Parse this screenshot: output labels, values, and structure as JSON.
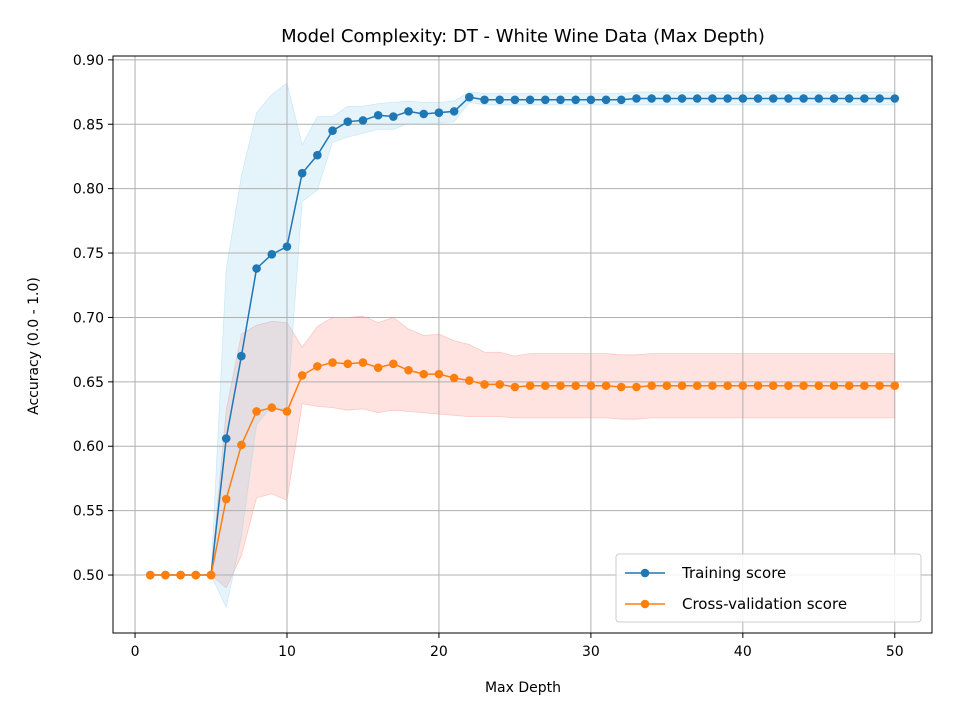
{
  "chart_data": {
    "type": "line",
    "title": "Model Complexity: DT - White Wine Data (Max Depth)",
    "xlabel": "Max Depth",
    "ylabel": "Accuracy (0.0 - 1.0)",
    "xlim": [
      -1.45,
      52.45
    ],
    "ylim": [
      0.455,
      0.903
    ],
    "xticks": [
      0,
      10,
      20,
      30,
      40,
      50
    ],
    "yticks": [
      0.5,
      0.55,
      0.6,
      0.65,
      0.7,
      0.75,
      0.8,
      0.85,
      0.9
    ],
    "xtick_labels": [
      "0",
      "10",
      "20",
      "30",
      "40",
      "50"
    ],
    "ytick_labels": [
      "0.50",
      "0.55",
      "0.60",
      "0.65",
      "0.70",
      "0.75",
      "0.80",
      "0.85",
      "0.90"
    ],
    "grid": true,
    "legend_position": "bottom-right",
    "x": [
      1,
      2,
      3,
      4,
      5,
      6,
      7,
      8,
      9,
      10,
      11,
      12,
      13,
      14,
      15,
      16,
      17,
      18,
      19,
      20,
      21,
      22,
      23,
      24,
      25,
      26,
      27,
      28,
      29,
      30,
      31,
      32,
      33,
      34,
      35,
      36,
      37,
      38,
      39,
      40,
      41,
      42,
      43,
      44,
      45,
      46,
      47,
      48,
      49,
      50
    ],
    "series": [
      {
        "name": "Training score",
        "color": "#1f77b4",
        "band_color": "#87ceeb",
        "values": [
          0.5,
          0.5,
          0.5,
          0.5,
          0.5,
          0.606,
          0.67,
          0.738,
          0.749,
          0.755,
          0.812,
          0.826,
          0.845,
          0.852,
          0.853,
          0.857,
          0.856,
          0.86,
          0.858,
          0.859,
          0.86,
          0.871,
          0.869,
          0.869,
          0.869,
          0.869,
          0.869,
          0.869,
          0.869,
          0.869,
          0.869,
          0.869,
          0.87,
          0.87,
          0.87,
          0.87,
          0.87,
          0.87,
          0.87,
          0.87,
          0.87,
          0.87,
          0.87,
          0.87,
          0.87,
          0.87,
          0.87,
          0.87,
          0.87,
          0.87
        ],
        "band_lower": [
          0.5,
          0.5,
          0.5,
          0.5,
          0.5,
          0.475,
          0.53,
          0.617,
          0.631,
          0.628,
          0.79,
          0.799,
          0.836,
          0.84,
          0.843,
          0.846,
          0.846,
          0.851,
          0.85,
          0.851,
          0.852,
          0.867,
          0.865,
          0.865,
          0.865,
          0.865,
          0.865,
          0.865,
          0.865,
          0.865,
          0.865,
          0.865,
          0.865,
          0.865,
          0.865,
          0.865,
          0.865,
          0.865,
          0.865,
          0.865,
          0.865,
          0.865,
          0.865,
          0.865,
          0.865,
          0.865,
          0.865,
          0.865,
          0.865,
          0.865
        ],
        "band_upper": [
          0.5,
          0.5,
          0.5,
          0.5,
          0.5,
          0.737,
          0.81,
          0.859,
          0.873,
          0.882,
          0.834,
          0.856,
          0.856,
          0.864,
          0.864,
          0.866,
          0.867,
          0.868,
          0.867,
          0.867,
          0.868,
          0.875,
          0.874,
          0.874,
          0.874,
          0.874,
          0.874,
          0.874,
          0.874,
          0.874,
          0.874,
          0.874,
          0.875,
          0.875,
          0.875,
          0.875,
          0.875,
          0.875,
          0.875,
          0.875,
          0.875,
          0.875,
          0.875,
          0.875,
          0.875,
          0.875,
          0.875,
          0.875,
          0.875,
          0.875
        ]
      },
      {
        "name": "Cross-validation score",
        "color": "#ff7f0e",
        "band_color": "#fa8072",
        "values": [
          0.5,
          0.5,
          0.5,
          0.5,
          0.5,
          0.559,
          0.601,
          0.627,
          0.63,
          0.627,
          0.655,
          0.662,
          0.665,
          0.664,
          0.665,
          0.661,
          0.664,
          0.659,
          0.656,
          0.656,
          0.653,
          0.651,
          0.648,
          0.648,
          0.646,
          0.647,
          0.647,
          0.647,
          0.647,
          0.647,
          0.647,
          0.646,
          0.646,
          0.647,
          0.647,
          0.647,
          0.647,
          0.647,
          0.647,
          0.647,
          0.647,
          0.647,
          0.647,
          0.647,
          0.647,
          0.647,
          0.647,
          0.647,
          0.647,
          0.647
        ],
        "band_lower": [
          0.5,
          0.5,
          0.5,
          0.5,
          0.5,
          0.49,
          0.515,
          0.56,
          0.563,
          0.558,
          0.633,
          0.631,
          0.63,
          0.628,
          0.629,
          0.626,
          0.628,
          0.627,
          0.626,
          0.625,
          0.624,
          0.623,
          0.623,
          0.623,
          0.622,
          0.622,
          0.622,
          0.622,
          0.622,
          0.622,
          0.622,
          0.621,
          0.621,
          0.622,
          0.622,
          0.622,
          0.622,
          0.622,
          0.622,
          0.622,
          0.622,
          0.622,
          0.622,
          0.622,
          0.622,
          0.622,
          0.622,
          0.622,
          0.622,
          0.622
        ],
        "band_upper": [
          0.5,
          0.5,
          0.5,
          0.5,
          0.5,
          0.628,
          0.687,
          0.694,
          0.697,
          0.696,
          0.677,
          0.693,
          0.7,
          0.7,
          0.701,
          0.696,
          0.7,
          0.691,
          0.686,
          0.687,
          0.682,
          0.679,
          0.673,
          0.673,
          0.67,
          0.672,
          0.672,
          0.672,
          0.672,
          0.672,
          0.672,
          0.671,
          0.671,
          0.672,
          0.672,
          0.672,
          0.672,
          0.672,
          0.672,
          0.672,
          0.672,
          0.672,
          0.672,
          0.672,
          0.672,
          0.672,
          0.672,
          0.672,
          0.672,
          0.672
        ]
      }
    ]
  }
}
